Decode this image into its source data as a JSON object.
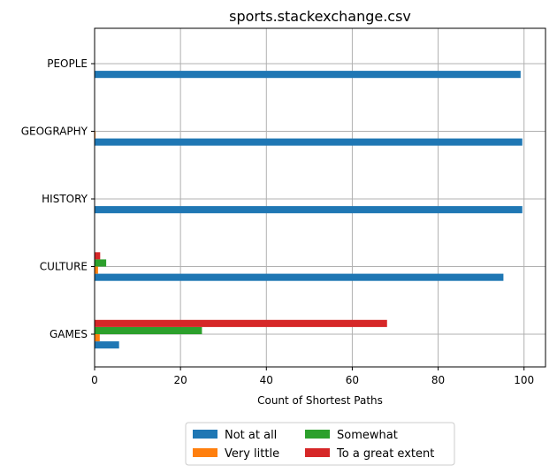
{
  "chart_data": {
    "type": "bar",
    "orientation": "horizontal",
    "title": "sports.stackexchange.csv",
    "xlabel": "Count of Shortest Paths",
    "ylabel": "",
    "xlim": [
      0,
      105
    ],
    "xticks": [
      0,
      20,
      40,
      60,
      80,
      100
    ],
    "grid": true,
    "legend_position": "bottom-center",
    "categories": [
      "GAMES",
      "CULTURE",
      "HISTORY",
      "GEOGRAPHY",
      "PEOPLE"
    ],
    "series": [
      {
        "name": "Not at all",
        "color": "#1f77b4",
        "values": [
          5.7,
          95.2,
          99.6,
          99.6,
          99.2
        ]
      },
      {
        "name": "Very little",
        "color": "#ff7f0e",
        "values": [
          1.2,
          0.8,
          0.0,
          0.2,
          0.1
        ]
      },
      {
        "name": "Somewhat",
        "color": "#2ca02c",
        "values": [
          25.0,
          2.7,
          0.0,
          0.0,
          0.0
        ]
      },
      {
        "name": "To a great extent",
        "color": "#d62728",
        "values": [
          68.1,
          1.3,
          0.0,
          0.0,
          0.0
        ]
      }
    ]
  }
}
